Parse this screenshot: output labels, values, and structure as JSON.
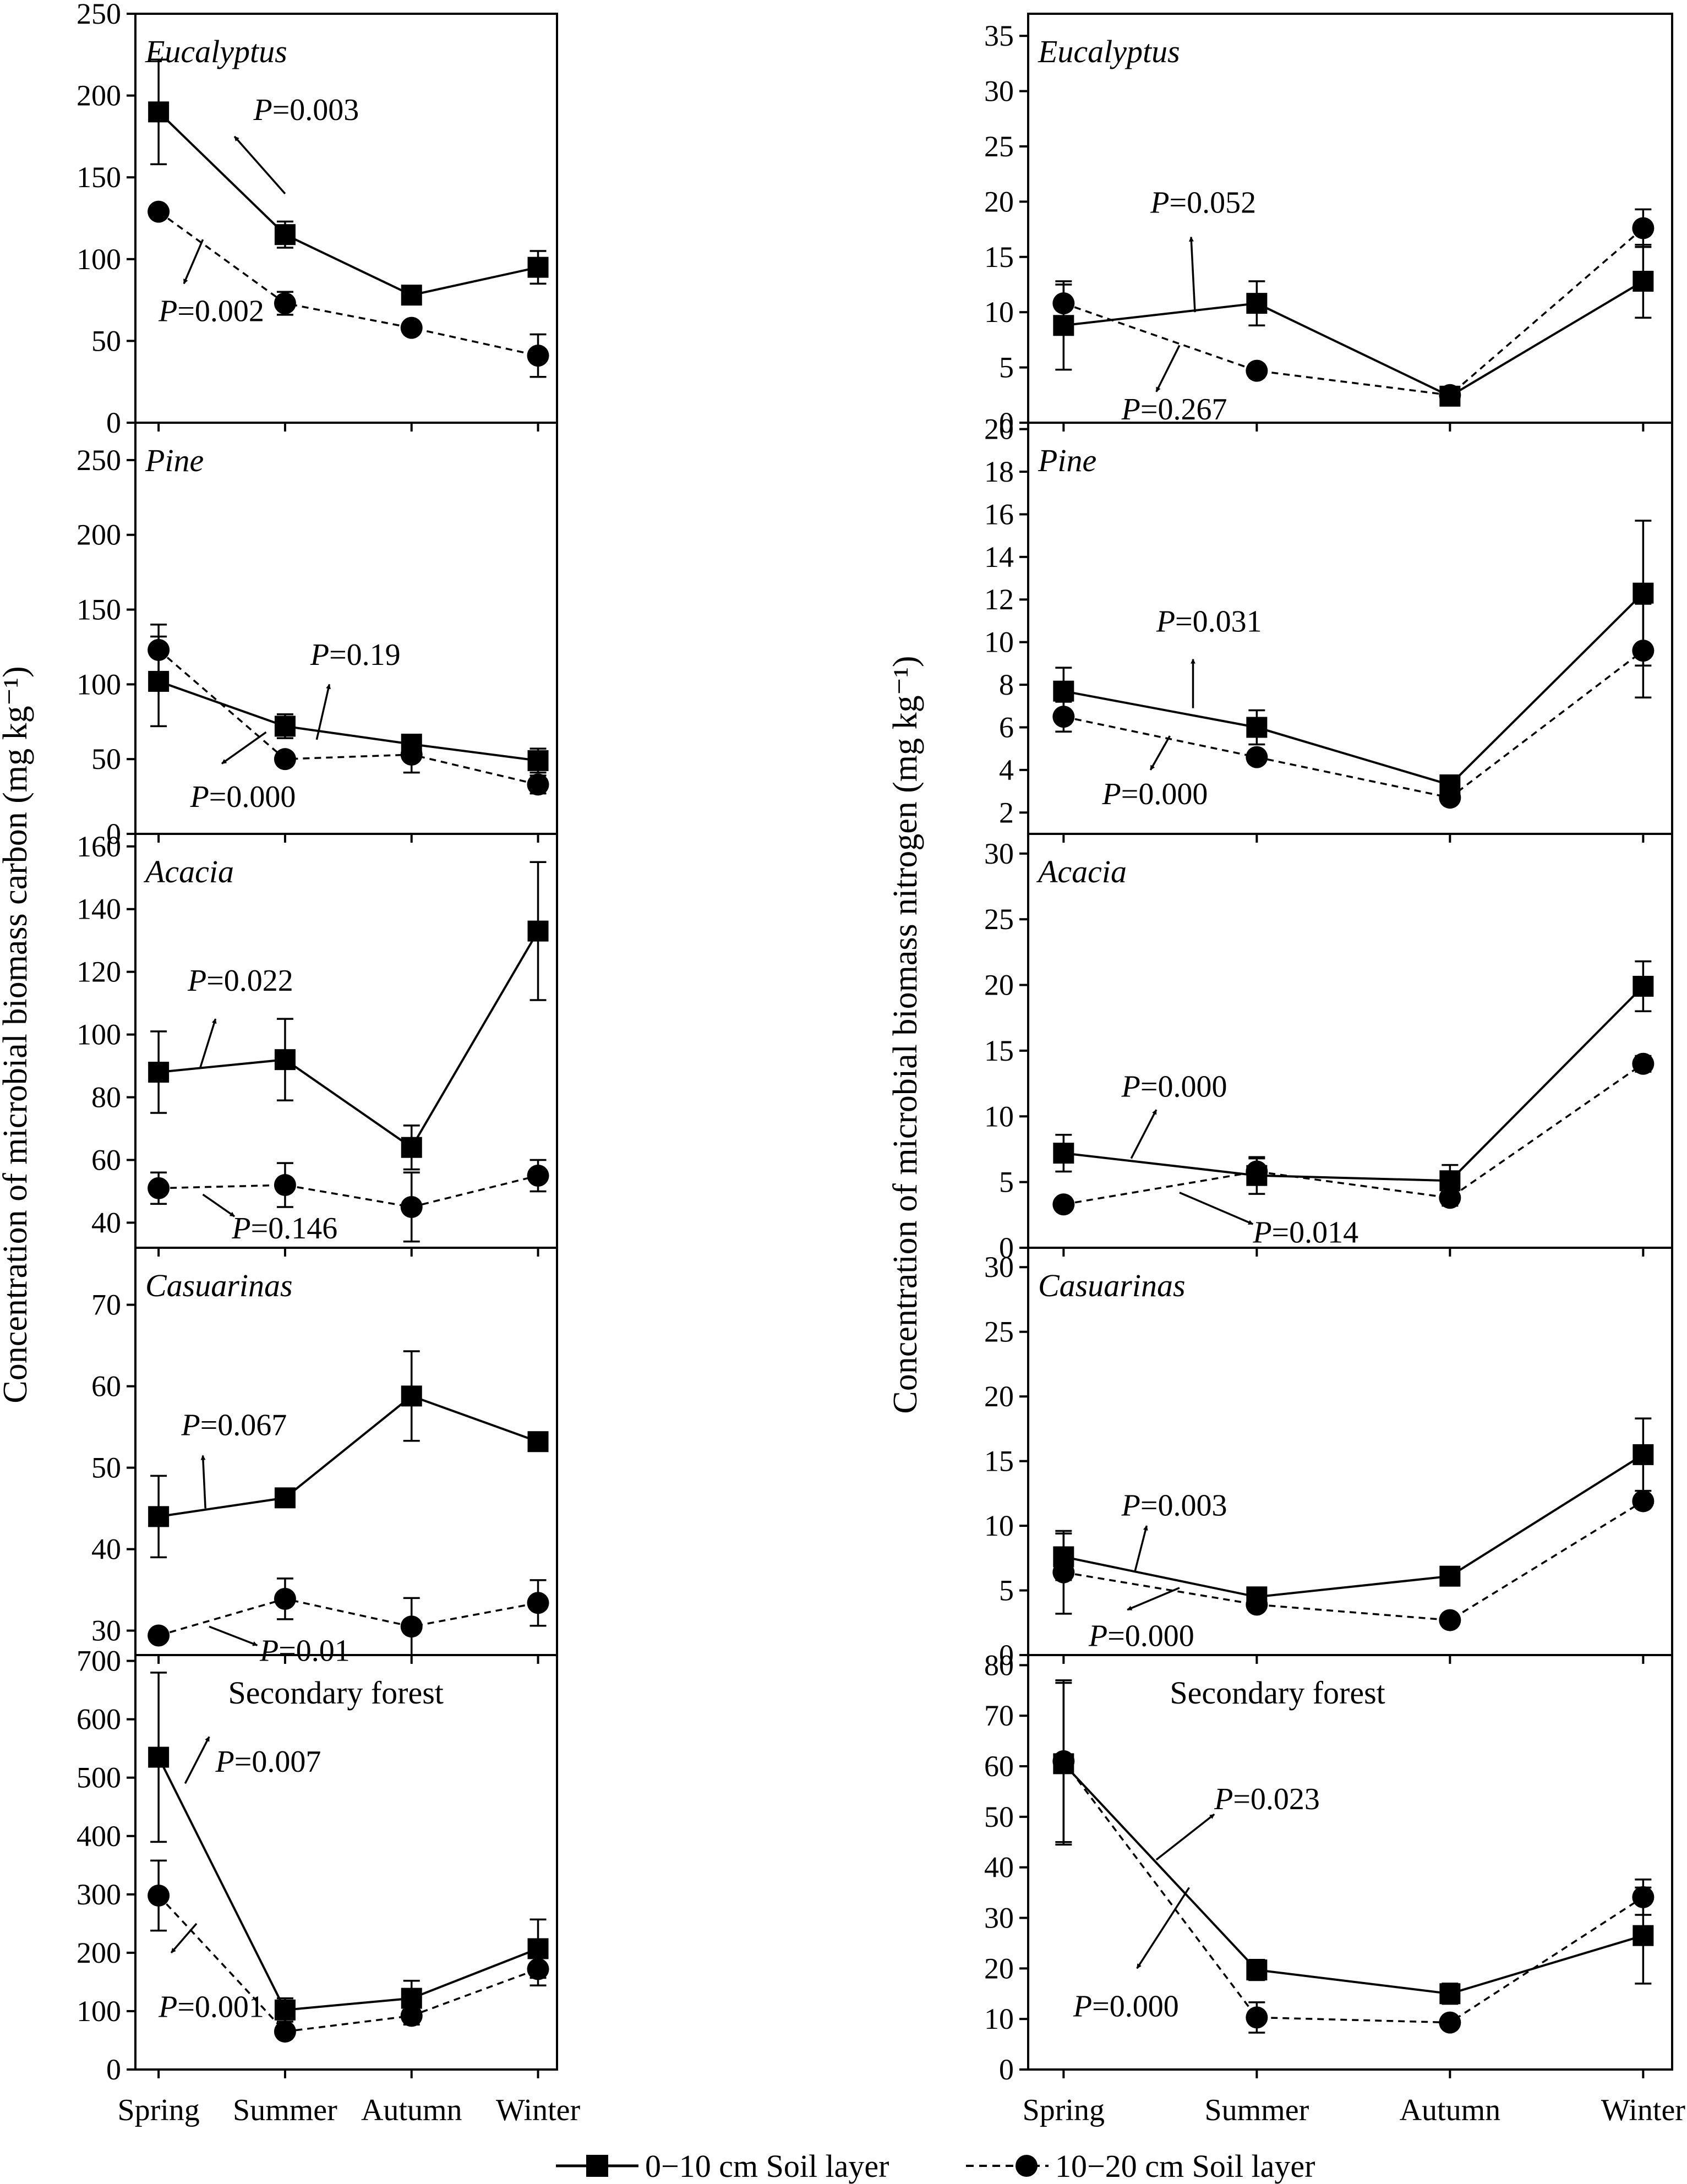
{
  "figure": {
    "ylabel_left": "Concentration of microbial biomass carbon (mg kg⁻¹)",
    "ylabel_right": "Concentration of microbial biomass nitrogen (mg kg⁻¹)",
    "legend": [
      {
        "label": "0−10 cm Soil layer",
        "style": "solid",
        "marker": "square"
      },
      {
        "label": "10−20 cm Soil layer",
        "style": "dashed",
        "marker": "circle"
      }
    ]
  },
  "chart_data": [
    {
      "id": "mbc-eucalyptus",
      "column": "left",
      "row": 0,
      "type": "line",
      "title": "Eucalyptus",
      "title_italic": true,
      "categories": [
        "Spring",
        "Summer",
        "Autumn",
        "Winter"
      ],
      "ylim": [
        0,
        250
      ],
      "yticks": [
        0,
        50,
        100,
        150,
        200,
        250
      ],
      "series": [
        {
          "name": "0−10 cm Soil layer",
          "values": [
            190,
            115,
            78,
            95
          ],
          "err": [
            32,
            8,
            3,
            10
          ]
        },
        {
          "name": "10−20 cm Soil layer",
          "values": [
            129,
            73,
            58,
            41
          ],
          "err": [
            2,
            7,
            2,
            13
          ]
        }
      ],
      "annotations": [
        {
          "p": "P",
          "text": "=0.003",
          "series": 0,
          "dir": "up",
          "from": [
            1,
            140
          ],
          "to": [
            0.6,
            175
          ],
          "label": [
            0.75,
            185
          ]
        },
        {
          "p": "P",
          "text": "=0.002",
          "series": 1,
          "dir": "down",
          "from": [
            0.35,
            112
          ],
          "to": [
            0.2,
            85
          ],
          "label": [
            0,
            62
          ]
        }
      ]
    },
    {
      "id": "mbn-eucalyptus",
      "column": "right",
      "row": 0,
      "type": "line",
      "title": "Eucalyptus",
      "title_italic": true,
      "categories": [
        "Spring",
        "Summer",
        "Autumn",
        "Winter"
      ],
      "ylim": [
        0,
        37
      ],
      "yticks": [
        0,
        5,
        10,
        15,
        20,
        25,
        30,
        35
      ],
      "series": [
        {
          "name": "0−10 cm Soil layer",
          "values": [
            8.8,
            10.8,
            2.4,
            12.8
          ],
          "err": [
            4,
            2,
            0.4,
            3.3
          ]
        },
        {
          "name": "10−20 cm Soil layer",
          "values": [
            10.8,
            4.7,
            2.5,
            17.6
          ],
          "err": [
            1.7,
            0.6,
            0.3,
            1.7
          ]
        }
      ],
      "annotations": [
        {
          "p": "P",
          "text": "=0.052",
          "series": 0,
          "dir": "up",
          "from": [
            0.68,
            10
          ],
          "to": [
            0.66,
            16.8
          ],
          "label": [
            0.45,
            19
          ]
        },
        {
          "p": "P",
          "text": "=0.267",
          "series": 1,
          "dir": "down",
          "from": [
            0.6,
            7
          ],
          "to": [
            0.48,
            2.8
          ],
          "label": [
            0.3,
            0.3
          ]
        }
      ]
    },
    {
      "id": "mbc-pine",
      "column": "left",
      "row": 1,
      "type": "line",
      "title": "Pine",
      "title_italic": true,
      "categories": [
        "Spring",
        "Summer",
        "Autumn",
        "Winter"
      ],
      "ylim": [
        0,
        275
      ],
      "yticks": [
        0,
        50,
        100,
        150,
        200,
        250
      ],
      "series": [
        {
          "name": "0−10 cm Soil layer",
          "values": [
            102,
            72,
            60,
            49
          ],
          "err": [
            30,
            8,
            6,
            8
          ]
        },
        {
          "name": "10−20 cm Soil layer",
          "values": [
            123,
            50,
            53,
            33
          ],
          "err": [
            17,
            3,
            12,
            6
          ]
        }
      ],
      "annotations": [
        {
          "p": "P",
          "text": "=0.19",
          "series": 0,
          "dir": "up",
          "from": [
            1.25,
            63
          ],
          "to": [
            1.35,
            100
          ],
          "label": [
            1.2,
            113
          ]
        },
        {
          "p": "P",
          "text": "=0.000",
          "series": 1,
          "dir": "down",
          "from": [
            0.85,
            68
          ],
          "to": [
            0.5,
            47
          ],
          "label": [
            0.25,
            18
          ]
        }
      ]
    },
    {
      "id": "mbn-pine",
      "column": "right",
      "row": 1,
      "type": "line",
      "title": "Pine",
      "title_italic": true,
      "categories": [
        "Spring",
        "Summer",
        "Autumn",
        "Winter"
      ],
      "ylim": [
        1,
        20.3
      ],
      "yticks": [
        2,
        4,
        6,
        8,
        10,
        12,
        14,
        16,
        18,
        20
      ],
      "series": [
        {
          "name": "0−10 cm Soil layer",
          "values": [
            7.7,
            6,
            3.3,
            12.3
          ],
          "err": [
            1.1,
            0.8,
            0.2,
            3.4
          ]
        },
        {
          "name": "10−20 cm Soil layer",
          "values": [
            6.5,
            4.6,
            2.7,
            9.6
          ],
          "err": [
            0.7,
            0.3,
            0.2,
            2.2
          ]
        }
      ],
      "annotations": [
        {
          "p": "P",
          "text": "=0.031",
          "series": 0,
          "dir": "up",
          "from": [
            0.67,
            6.9
          ],
          "to": [
            0.67,
            9.2
          ],
          "label": [
            0.48,
            10.5
          ]
        },
        {
          "p": "P",
          "text": "=0.000",
          "series": 1,
          "dir": "down",
          "from": [
            0.55,
            5.6
          ],
          "to": [
            0.45,
            4
          ],
          "label": [
            0.2,
            2.4
          ]
        }
      ]
    },
    {
      "id": "mbc-acacia",
      "column": "left",
      "row": 2,
      "type": "line",
      "title": "Acacia",
      "title_italic": true,
      "categories": [
        "Spring",
        "Summer",
        "Autumn",
        "Winter"
      ],
      "ylim": [
        32,
        164
      ],
      "yticks": [
        40,
        60,
        80,
        100,
        120,
        140,
        160
      ],
      "series": [
        {
          "name": "0−10 cm Soil layer",
          "values": [
            88,
            92,
            64,
            133
          ],
          "err": [
            13,
            13,
            7,
            22
          ]
        },
        {
          "name": "10−20 cm Soil layer",
          "values": [
            51,
            52,
            45,
            55
          ],
          "err": [
            5,
            7,
            11,
            5
          ]
        }
      ],
      "annotations": [
        {
          "p": "P",
          "text": "=0.022",
          "series": 0,
          "dir": "up",
          "from": [
            0.33,
            89.5
          ],
          "to": [
            0.45,
            105
          ],
          "label": [
            0.23,
            114
          ]
        },
        {
          "p": "P",
          "text": "=0.146",
          "series": 1,
          "dir": "down",
          "from": [
            0.35,
            49
          ],
          "to": [
            0.6,
            42
          ],
          "label": [
            0.58,
            35
          ]
        }
      ]
    },
    {
      "id": "mbn-acacia",
      "column": "right",
      "row": 2,
      "type": "line",
      "title": "Acacia",
      "title_italic": true,
      "categories": [
        "Spring",
        "Summer",
        "Autumn",
        "Winter"
      ],
      "ylim": [
        0,
        31.5
      ],
      "yticks": [
        0,
        5,
        10,
        15,
        20,
        25,
        30
      ],
      "series": [
        {
          "name": "0−10 cm Soil layer",
          "values": [
            7.2,
            5.5,
            5.1,
            19.9
          ],
          "err": [
            1.4,
            1.4,
            1.2,
            1.9
          ]
        },
        {
          "name": "10−20 cm Soil layer",
          "values": [
            3.3,
            5.8,
            3.8,
            14
          ],
          "err": [
            0.4,
            1,
            0.6,
            0.6
          ]
        }
      ],
      "annotations": [
        {
          "p": "P",
          "text": "=0.000",
          "series": 0,
          "dir": "up",
          "from": [
            0.35,
            6.8
          ],
          "to": [
            0.48,
            10.5
          ],
          "label": [
            0.3,
            11.5
          ]
        },
        {
          "p": "P",
          "text": "=0.014",
          "series": 1,
          "dir": "down",
          "from": [
            0.6,
            4.2
          ],
          "to": [
            0.98,
            1.8
          ],
          "label": [
            0.98,
            0.4
          ]
        }
      ]
    },
    {
      "id": "mbc-casuarinas",
      "column": "left",
      "row": 3,
      "type": "line",
      "title": "Casuarinas",
      "title_italic": true,
      "categories": [
        "Spring",
        "Summer",
        "Autumn",
        "Winter"
      ],
      "ylim": [
        27,
        77
      ],
      "yticks": [
        30,
        40,
        50,
        60,
        70
      ],
      "series": [
        {
          "name": "0−10 cm Soil layer",
          "values": [
            44,
            46.3,
            58.8,
            53.2
          ],
          "err": [
            5,
            0.5,
            5.5,
            0.5
          ]
        },
        {
          "name": "10−20 cm Soil layer",
          "values": [
            29.4,
            33.9,
            30.5,
            33.4
          ],
          "err": [
            0.5,
            2.5,
            3.5,
            2.8
          ]
        }
      ],
      "annotations": [
        {
          "p": "P",
          "text": "=0.067",
          "series": 0,
          "dir": "up",
          "from": [
            0.37,
            45
          ],
          "to": [
            0.35,
            51.5
          ],
          "label": [
            0.18,
            54
          ]
        },
        {
          "p": "P",
          "text": "=0.01",
          "series": 1,
          "dir": "down",
          "from": [
            0.4,
            30.5
          ],
          "to": [
            0.78,
            28.2
          ],
          "label": [
            0.8,
            26.3
          ]
        }
      ]
    },
    {
      "id": "mbn-casuarinas",
      "column": "right",
      "row": 3,
      "type": "line",
      "title": "Casuarinas",
      "title_italic": true,
      "categories": [
        "Spring",
        "Summer",
        "Autumn",
        "Winter"
      ],
      "ylim": [
        0,
        31.5
      ],
      "yticks": [
        0,
        5,
        10,
        15,
        20,
        25,
        30
      ],
      "series": [
        {
          "name": "0−10 cm Soil layer",
          "values": [
            7.6,
            4.5,
            6.1,
            15.5
          ],
          "err": [
            1.8,
            0.5,
            0.3,
            2.8
          ]
        },
        {
          "name": "10−20 cm Soil layer",
          "values": [
            6.4,
            3.9,
            2.7,
            11.9
          ],
          "err": [
            3.2,
            0.5,
            0.3,
            0.4
          ]
        }
      ],
      "annotations": [
        {
          "p": "P",
          "text": "=0.003",
          "series": 0,
          "dir": "up",
          "from": [
            0.37,
            6.5
          ],
          "to": [
            0.43,
            10
          ],
          "label": [
            0.3,
            10.8
          ]
        },
        {
          "p": "P",
          "text": "=0.000",
          "series": 1,
          "dir": "down",
          "from": [
            0.6,
            5.2
          ],
          "to": [
            0.33,
            3.5
          ],
          "label": [
            0.13,
            0.7
          ]
        }
      ]
    },
    {
      "id": "mbc-secondary-forest",
      "column": "left",
      "row": 4,
      "type": "line",
      "title": "Secondary forest",
      "title_italic": false,
      "categories": [
        "Spring",
        "Summer",
        "Autumn",
        "Winter"
      ],
      "ylim": [
        0,
        710
      ],
      "yticks": [
        0,
        100,
        200,
        300,
        400,
        500,
        600,
        700
      ],
      "series": [
        {
          "name": "0−10 cm Soil layer",
          "values": [
            535,
            102,
            122,
            207
          ],
          "err": [
            145,
            20,
            30,
            50
          ]
        },
        {
          "name": "10−20 cm Soil layer",
          "values": [
            298,
            65,
            92,
            172
          ],
          "err": [
            60,
            10,
            15,
            28
          ]
        }
      ],
      "annotations": [
        {
          "p": "P",
          "text": "=0.007",
          "series": 0,
          "dir": "up",
          "from": [
            0.21,
            490
          ],
          "to": [
            0.4,
            570
          ],
          "label": [
            0.45,
            510
          ]
        },
        {
          "p": "P",
          "text": "=0.001",
          "series": 1,
          "dir": "down",
          "from": [
            0.3,
            250
          ],
          "to": [
            0.1,
            200
          ],
          "label": [
            0,
            90
          ]
        }
      ]
    },
    {
      "id": "mbn-secondary-forest",
      "column": "right",
      "row": 4,
      "type": "line",
      "title": "Secondary forest",
      "title_italic": false,
      "categories": [
        "Spring",
        "Summer",
        "Autumn",
        "Winter"
      ],
      "ylim": [
        0,
        82
      ],
      "yticks": [
        0,
        10,
        20,
        30,
        40,
        50,
        60,
        70,
        80
      ],
      "series": [
        {
          "name": "0−10 cm Soil layer",
          "values": [
            60.5,
            19.7,
            15,
            26.5
          ],
          "err": [
            16,
            2,
            2,
            9.5
          ]
        },
        {
          "name": "10−20 cm Soil layer",
          "values": [
            61,
            10.3,
            9.3,
            34.1
          ],
          "err": [
            16,
            3,
            0.5,
            3.5
          ]
        }
      ],
      "annotations": [
        {
          "p": "P",
          "text": "=0.023",
          "series": 0,
          "dir": "up",
          "from": [
            0.48,
            41.5
          ],
          "to": [
            0.78,
            50.5
          ],
          "label": [
            0.78,
            51.5
          ]
        },
        {
          "p": "P",
          "text": "=0.000",
          "series": 1,
          "dir": "down",
          "from": [
            0.65,
            36
          ],
          "to": [
            0.38,
            20
          ],
          "label": [
            0.05,
            10.5
          ]
        }
      ]
    }
  ]
}
